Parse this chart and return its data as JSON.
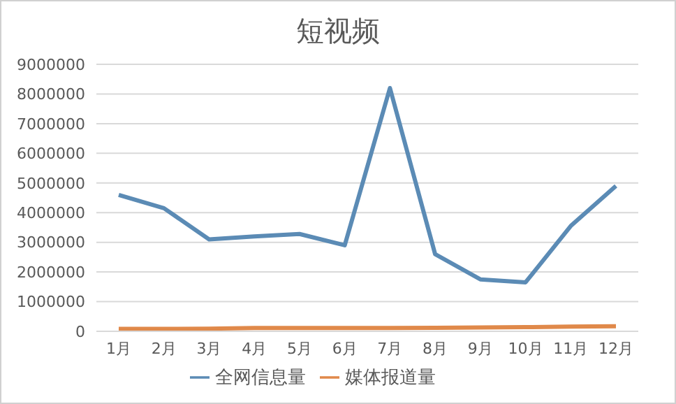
{
  "chart_data": {
    "type": "line",
    "title": "短视频",
    "categories": [
      "1月",
      "2月",
      "3月",
      "4月",
      "5月",
      "6月",
      "7月",
      "8月",
      "9月",
      "10月",
      "11月",
      "12月"
    ],
    "series": [
      {
        "name": "全网信息量",
        "color": "#5b8bb5",
        "values": [
          4600000,
          4150000,
          3100000,
          3200000,
          3280000,
          2900000,
          8200000,
          2600000,
          1750000,
          1650000,
          3550000,
          4900000
        ]
      },
      {
        "name": "媒体报道量",
        "color": "#e0894a",
        "values": [
          80000,
          80000,
          90000,
          110000,
          110000,
          110000,
          110000,
          120000,
          130000,
          140000,
          160000,
          170000
        ]
      }
    ],
    "ylim": [
      0,
      9000000
    ],
    "yticks": [
      0,
      1000000,
      2000000,
      3000000,
      4000000,
      5000000,
      6000000,
      7000000,
      8000000,
      9000000
    ],
    "grid": "y",
    "legend": "bottom",
    "marker": "none",
    "line_style": "solid"
  }
}
